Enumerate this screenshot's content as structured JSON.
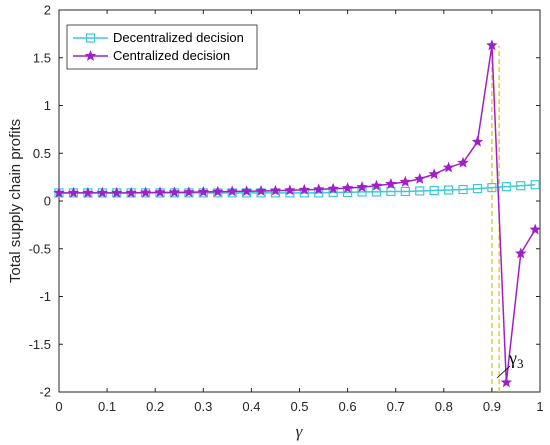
{
  "chart_data": {
    "type": "line",
    "xlabel": "γ",
    "ylabel": "Total supply chain profits",
    "xlim": [
      0,
      1
    ],
    "ylim": [
      -2,
      2
    ],
    "xticks": [
      "0",
      "0.1",
      "0.2",
      "0.3",
      "0.4",
      "0.5",
      "0.6",
      "0.7",
      "0.8",
      "0.9",
      "1"
    ],
    "yticks": [
      "-2",
      "-1.5",
      "-1",
      "-0.5",
      "0",
      "0.5",
      "1",
      "1.5",
      "2"
    ],
    "grid": false,
    "legend_position": "top-left",
    "series": [
      {
        "name": "Decentralized decision",
        "color": "#3ec8d8",
        "marker": "square",
        "x": [
          0,
          0.03,
          0.06,
          0.09,
          0.12,
          0.15,
          0.18,
          0.21,
          0.24,
          0.27,
          0.3,
          0.33,
          0.36,
          0.39,
          0.42,
          0.45,
          0.48,
          0.51,
          0.54,
          0.57,
          0.6,
          0.63,
          0.66,
          0.69,
          0.72,
          0.75,
          0.78,
          0.81,
          0.84,
          0.87,
          0.9,
          0.93,
          0.96,
          0.99
        ],
        "y": [
          0.085,
          0.085,
          0.085,
          0.085,
          0.085,
          0.085,
          0.085,
          0.085,
          0.085,
          0.085,
          0.085,
          0.085,
          0.085,
          0.085,
          0.085,
          0.085,
          0.085,
          0.085,
          0.085,
          0.09,
          0.09,
          0.095,
          0.095,
          0.1,
          0.1,
          0.105,
          0.11,
          0.115,
          0.12,
          0.13,
          0.14,
          0.15,
          0.16,
          0.17
        ]
      },
      {
        "name": "Centralized decision",
        "color": "#a020c8",
        "marker": "star",
        "x": [
          0,
          0.03,
          0.06,
          0.09,
          0.12,
          0.15,
          0.18,
          0.21,
          0.24,
          0.27,
          0.3,
          0.33,
          0.36,
          0.39,
          0.42,
          0.45,
          0.48,
          0.51,
          0.54,
          0.57,
          0.6,
          0.63,
          0.66,
          0.69,
          0.72,
          0.75,
          0.78,
          0.81,
          0.84,
          0.87,
          0.9,
          0.93,
          0.96,
          0.99
        ],
        "y": [
          0.085,
          0.085,
          0.085,
          0.085,
          0.085,
          0.085,
          0.088,
          0.09,
          0.09,
          0.092,
          0.095,
          0.097,
          0.1,
          0.102,
          0.105,
          0.108,
          0.112,
          0.117,
          0.122,
          0.128,
          0.135,
          0.145,
          0.16,
          0.178,
          0.2,
          0.232,
          0.28,
          0.35,
          0.4,
          0.62,
          1.63,
          -1.9,
          -0.55,
          -0.3
        ]
      }
    ],
    "dashed_lines": [
      {
        "x": 0.9,
        "color": "#e8c820"
      },
      {
        "x": 0.915,
        "color": "#e8c820"
      }
    ],
    "annotations": [
      {
        "text": "γ3",
        "x": 0.93,
        "y": -1.9
      }
    ]
  }
}
